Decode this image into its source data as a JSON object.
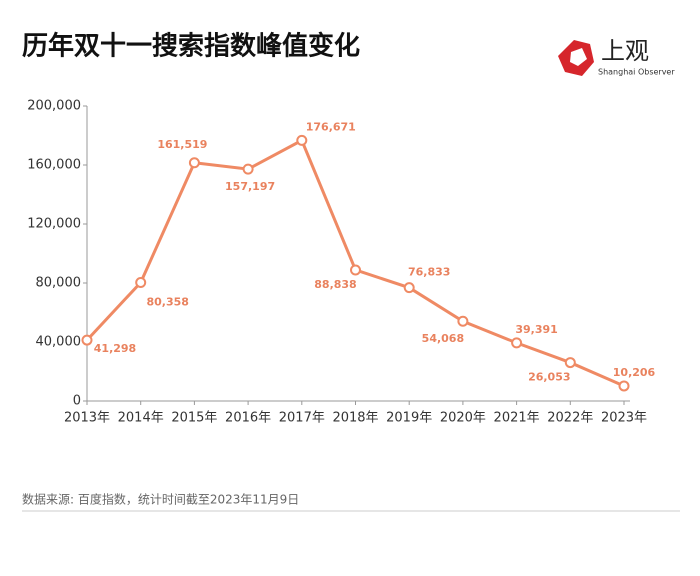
{
  "chart_data": {
    "type": "line",
    "title": "历年双十一搜索指数峰值变化",
    "brand": "上观",
    "brand_subtitle": "Shanghai Observer",
    "source": "数据来源: 百度指数，统计时间截至2023年11月9日",
    "categories": [
      "2013年",
      "2014年",
      "2015年",
      "2016年",
      "2017年",
      "2018年",
      "2019年",
      "2020年",
      "2021年",
      "2022年",
      "2023年"
    ],
    "values": [
      41298,
      80358,
      161519,
      157197,
      176671,
      88838,
      76833,
      54068,
      39391,
      26053,
      10206
    ],
    "value_labels": [
      "41,298",
      "80,358",
      "161,519",
      "157,197",
      "176,671",
      "88,838",
      "76,833",
      "54,068",
      "39,391",
      "26,053",
      "10,206"
    ],
    "color": "#ef8a64",
    "ylim": [
      0,
      200000
    ],
    "yticks": [
      0,
      {
        "value": 40000,
        "label": "40,000"
      },
      {
        "value": 80000,
        "label": "80,000"
      },
      {
        "value": 120000,
        "label": "120,000"
      },
      {
        "value": 160000,
        "label": "160,000"
      },
      {
        "value": 200000,
        "label": "200,000"
      }
    ],
    "grid": false
  }
}
